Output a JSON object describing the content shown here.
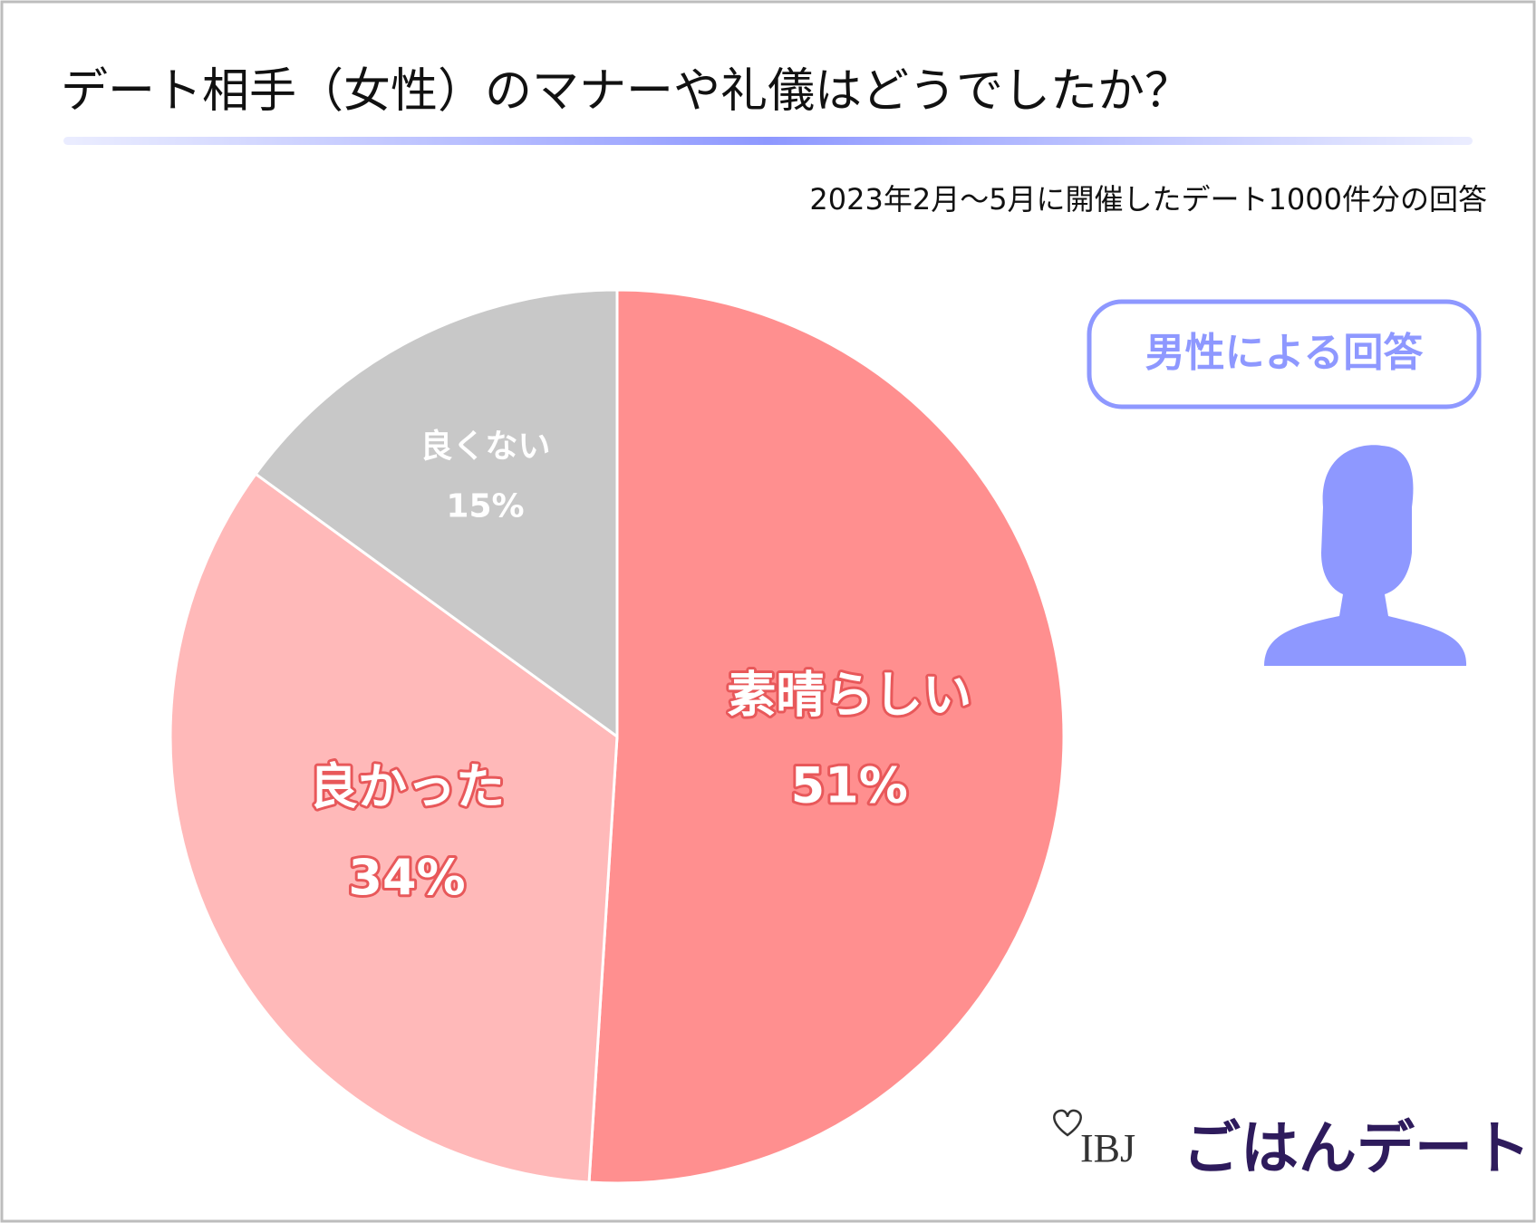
{
  "chart_data": {
    "type": "pie",
    "title": "デート相手（女性）のマナーや礼儀はどうでしたか？",
    "subtitle": "2023年2月〜5月に開催したデート1000件分の回答",
    "categories": [
      "素晴らしい",
      "良かった",
      "良くない"
    ],
    "values": [
      51,
      34,
      15
    ],
    "value_labels": [
      "51%",
      "34%",
      "15%"
    ],
    "colors": [
      "#ff8f8f",
      "#ffb9b9",
      "#c8c8c8"
    ],
    "annotations": {
      "respondent": "男性による回答"
    },
    "logo": {
      "brand": "IBJ",
      "service": "ごはんデート"
    }
  }
}
